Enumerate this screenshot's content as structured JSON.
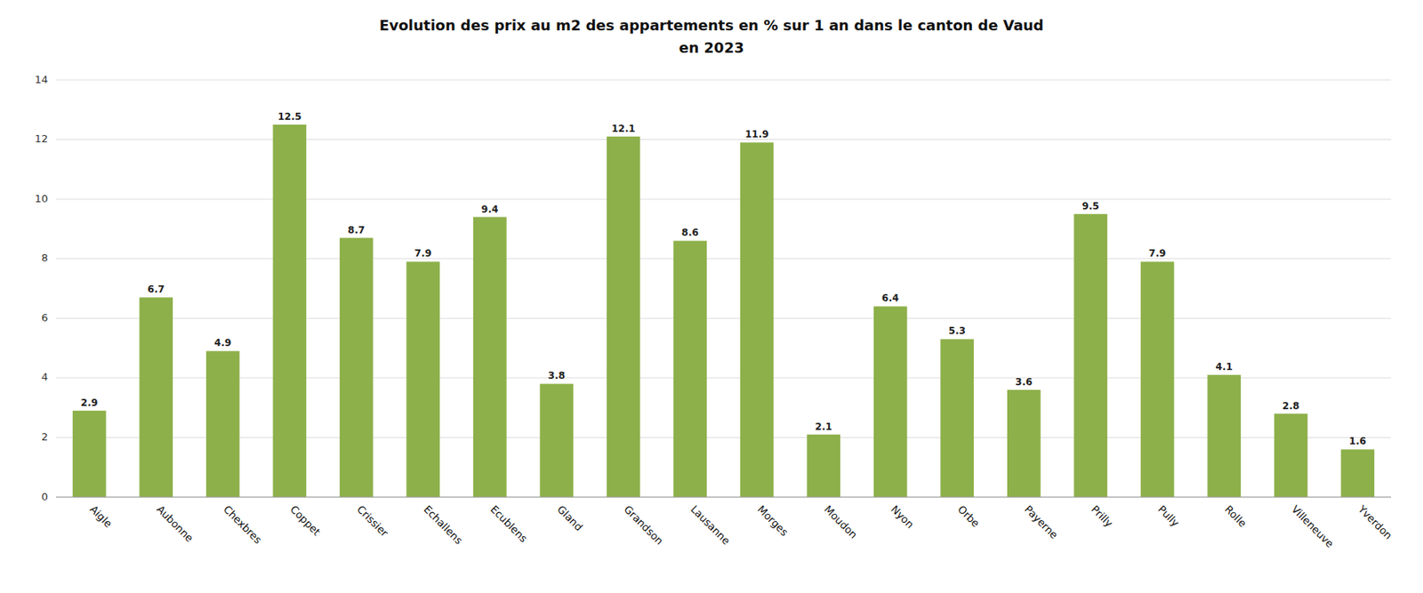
{
  "chart_data": {
    "type": "bar",
    "title": "Evolution des prix au m2 des appartements en % sur 1 an dans le canton de Vaud",
    "subtitle": "en 2023",
    "categories": [
      "Aigle",
      "Aubonne",
      "Chexbres",
      "Coppet",
      "Crissier",
      "Echallens",
      "Ecublens",
      "Gland",
      "Grandson",
      "Lausanne",
      "Morges",
      "Moudon",
      "Nyon",
      "Orbe",
      "Payerne",
      "Prilly",
      "Pully",
      "Rolle",
      "Villeneuve",
      "Yverdon"
    ],
    "values": [
      2.9,
      6.7,
      4.9,
      12.5,
      8.7,
      7.9,
      9.4,
      3.8,
      12.1,
      8.6,
      11.9,
      2.1,
      6.4,
      5.3,
      3.6,
      9.5,
      7.9,
      4.1,
      2.8,
      1.6
    ],
    "color": "#8db04a",
    "ylim": [
      0,
      14
    ],
    "yticks": [
      0,
      2,
      4,
      6,
      8,
      10,
      12,
      14
    ],
    "grid": true,
    "data_labels": true
  }
}
